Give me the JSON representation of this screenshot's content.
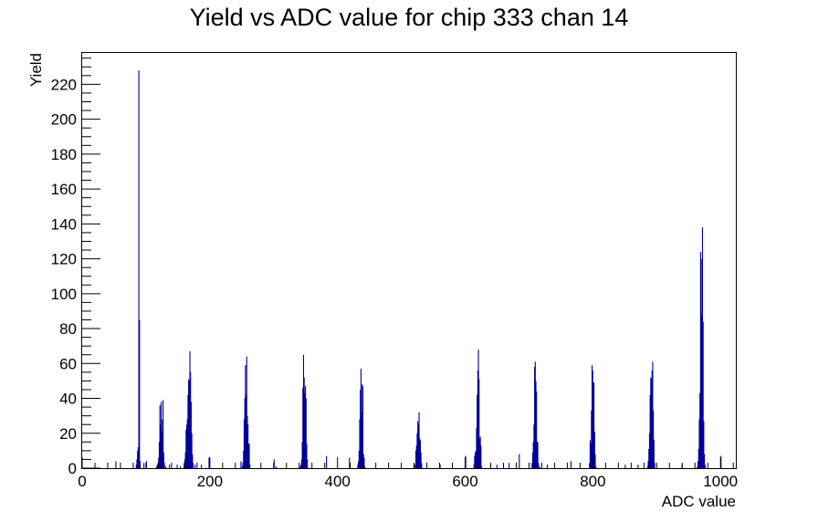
{
  "chart_data": {
    "type": "bar",
    "title": "Yield vs ADC value for chip 333 chan 14",
    "xlabel": "ADC value",
    "ylabel": "Yield",
    "xlim": [
      0,
      1024
    ],
    "ylim": [
      0,
      238
    ],
    "x_ticks": [
      0,
      200,
      400,
      600,
      800,
      1000
    ],
    "y_ticks": [
      0,
      20,
      40,
      60,
      80,
      100,
      120,
      140,
      160,
      180,
      200,
      220
    ],
    "bar_color": "#000099",
    "bins": [
      [
        52,
        4
      ],
      [
        84,
        2
      ],
      [
        85,
        5
      ],
      [
        86,
        10
      ],
      [
        87,
        12
      ],
      [
        88,
        228
      ],
      [
        89,
        85
      ],
      [
        90,
        4
      ],
      [
        96,
        3
      ],
      [
        100,
        4
      ],
      [
        116,
        1
      ],
      [
        117,
        2
      ],
      [
        118,
        3
      ],
      [
        119,
        6
      ],
      [
        120,
        15
      ],
      [
        121,
        36
      ],
      [
        122,
        25
      ],
      [
        123,
        38
      ],
      [
        124,
        21
      ],
      [
        125,
        28
      ],
      [
        126,
        39
      ],
      [
        127,
        9
      ],
      [
        128,
        3
      ],
      [
        130,
        1
      ],
      [
        136,
        2
      ],
      [
        148,
        2
      ],
      [
        153,
        1
      ],
      [
        159,
        2
      ],
      [
        160,
        5
      ],
      [
        161,
        9
      ],
      [
        162,
        22
      ],
      [
        163,
        25
      ],
      [
        164,
        28
      ],
      [
        165,
        42
      ],
      [
        166,
        51
      ],
      [
        167,
        50
      ],
      [
        168,
        67
      ],
      [
        169,
        55
      ],
      [
        170,
        38
      ],
      [
        171,
        20
      ],
      [
        172,
        8
      ],
      [
        173,
        3
      ],
      [
        176,
        2
      ],
      [
        186,
        2
      ],
      [
        198,
        6
      ],
      [
        248,
        4
      ],
      [
        250,
        1
      ],
      [
        251,
        3
      ],
      [
        252,
        10
      ],
      [
        253,
        28
      ],
      [
        254,
        40
      ],
      [
        255,
        59
      ],
      [
        256,
        42
      ],
      [
        257,
        64
      ],
      [
        258,
        30
      ],
      [
        259,
        25
      ],
      [
        260,
        14
      ],
      [
        261,
        14
      ],
      [
        262,
        2
      ],
      [
        300,
        5
      ],
      [
        303,
        1
      ],
      [
        341,
        1
      ],
      [
        342,
        2
      ],
      [
        343,
        5
      ],
      [
        344,
        15
      ],
      [
        345,
        46
      ],
      [
        346,
        65
      ],
      [
        347,
        52
      ],
      [
        348,
        43
      ],
      [
        349,
        47
      ],
      [
        350,
        40
      ],
      [
        351,
        14
      ],
      [
        352,
        5
      ],
      [
        382,
        7
      ],
      [
        418,
        6
      ],
      [
        431,
        2
      ],
      [
        432,
        4
      ],
      [
        433,
        10
      ],
      [
        434,
        28
      ],
      [
        435,
        45
      ],
      [
        436,
        57
      ],
      [
        437,
        32
      ],
      [
        438,
        48
      ],
      [
        439,
        47
      ],
      [
        440,
        8
      ],
      [
        441,
        6
      ],
      [
        442,
        1
      ],
      [
        519,
        3
      ],
      [
        521,
        2
      ],
      [
        522,
        10
      ],
      [
        523,
        13
      ],
      [
        524,
        20
      ],
      [
        525,
        27
      ],
      [
        526,
        25
      ],
      [
        527,
        32
      ],
      [
        528,
        17
      ],
      [
        529,
        16
      ],
      [
        530,
        9
      ],
      [
        531,
        3
      ],
      [
        560,
        2
      ],
      [
        600,
        7
      ],
      [
        613,
        2
      ],
      [
        614,
        7
      ],
      [
        615,
        9
      ],
      [
        616,
        10
      ],
      [
        617,
        23
      ],
      [
        618,
        42
      ],
      [
        619,
        56
      ],
      [
        620,
        68
      ],
      [
        621,
        51
      ],
      [
        622,
        17
      ],
      [
        623,
        18
      ],
      [
        624,
        13
      ],
      [
        625,
        1
      ],
      [
        649,
        2
      ],
      [
        668,
        3
      ],
      [
        684,
        8
      ],
      [
        704,
        3
      ],
      [
        705,
        9
      ],
      [
        706,
        15
      ],
      [
        707,
        25
      ],
      [
        708,
        58
      ],
      [
        709,
        61
      ],
      [
        710,
        50
      ],
      [
        711,
        44
      ],
      [
        712,
        15
      ],
      [
        713,
        15
      ],
      [
        714,
        3
      ],
      [
        716,
        1
      ],
      [
        728,
        2
      ],
      [
        765,
        4
      ],
      [
        794,
        3
      ],
      [
        795,
        16
      ],
      [
        796,
        14
      ],
      [
        797,
        33
      ],
      [
        798,
        59
      ],
      [
        799,
        56
      ],
      [
        800,
        49
      ],
      [
        801,
        49
      ],
      [
        802,
        21
      ],
      [
        803,
        8
      ],
      [
        804,
        1
      ],
      [
        850,
        2
      ],
      [
        870,
        2
      ],
      [
        885,
        1
      ],
      [
        886,
        4
      ],
      [
        887,
        11
      ],
      [
        888,
        20
      ],
      [
        889,
        42
      ],
      [
        890,
        52
      ],
      [
        891,
        51
      ],
      [
        892,
        56
      ],
      [
        893,
        61
      ],
      [
        894,
        33
      ],
      [
        895,
        16
      ],
      [
        896,
        3
      ],
      [
        939,
        2
      ],
      [
        963,
        1
      ],
      [
        964,
        4
      ],
      [
        965,
        11
      ],
      [
        966,
        28
      ],
      [
        967,
        43
      ],
      [
        968,
        124
      ],
      [
        969,
        120
      ],
      [
        970,
        88
      ],
      [
        971,
        138
      ],
      [
        972,
        84
      ],
      [
        973,
        27
      ],
      [
        974,
        8
      ],
      [
        975,
        2
      ],
      [
        1000,
        7
      ]
    ]
  }
}
